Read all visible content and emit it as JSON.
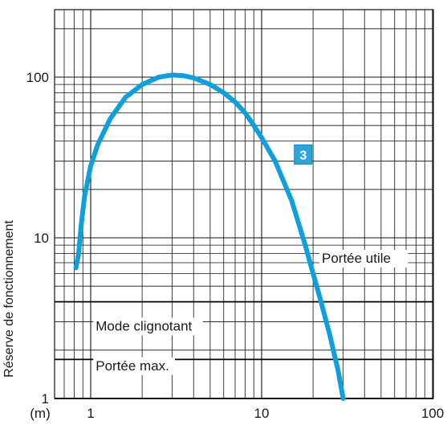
{
  "chart_data": {
    "type": "line",
    "xscale": "log",
    "yscale": "log",
    "xlim": [
      0.75,
      110
    ],
    "ylim": [
      1,
      400
    ],
    "xunit": "(m)",
    "ylabel": "Réserve de fonctionnement",
    "x_ticks": [
      {
        "value": 1,
        "label": "1"
      },
      {
        "value": 10,
        "label": "10"
      },
      {
        "value": 100,
        "label": "100"
      }
    ],
    "y_ticks": [
      {
        "value": 1,
        "label": "1"
      },
      {
        "value": 10,
        "label": "10"
      },
      {
        "value": 100,
        "label": "100"
      }
    ],
    "grid": true,
    "series": [
      {
        "name": "3",
        "color": "#0ea0dc",
        "points": [
          [
            0.82,
            6.5
          ],
          [
            0.85,
            8
          ],
          [
            0.88,
            12
          ],
          [
            0.92,
            18
          ],
          [
            1.0,
            28
          ],
          [
            1.1,
            38
          ],
          [
            1.3,
            55
          ],
          [
            1.6,
            75
          ],
          [
            2.0,
            90
          ],
          [
            2.5,
            100
          ],
          [
            3.0,
            103
          ],
          [
            3.5,
            102
          ],
          [
            4.0,
            99
          ],
          [
            5.0,
            90
          ],
          [
            6.0,
            80
          ],
          [
            7.0,
            70
          ],
          [
            8.0,
            60
          ],
          [
            9.0,
            50
          ],
          [
            10.0,
            42
          ],
          [
            12.0,
            30
          ],
          [
            15.0,
            17
          ],
          [
            18.0,
            9
          ],
          [
            20.0,
            6
          ],
          [
            22.0,
            4.2
          ],
          [
            25.0,
            2.5
          ],
          [
            28.0,
            1.5
          ],
          [
            30.0,
            1.0
          ]
        ]
      }
    ],
    "reference_lines": [
      {
        "y": 4.0,
        "label": "Portée utile",
        "label_x": 22.5,
        "label_y": 7.0
      },
      {
        "y": 1.75,
        "label": "Mode clignotant",
        "label_x": 1.07,
        "label_y": 2.65
      },
      {
        "y": 1.0,
        "label": "Portée max.",
        "label_x": 1.07,
        "label_y": 1.5
      }
    ],
    "series_marker": {
      "label": "3",
      "x": 17.5,
      "y": 33,
      "color": "#2aa6d9"
    }
  }
}
